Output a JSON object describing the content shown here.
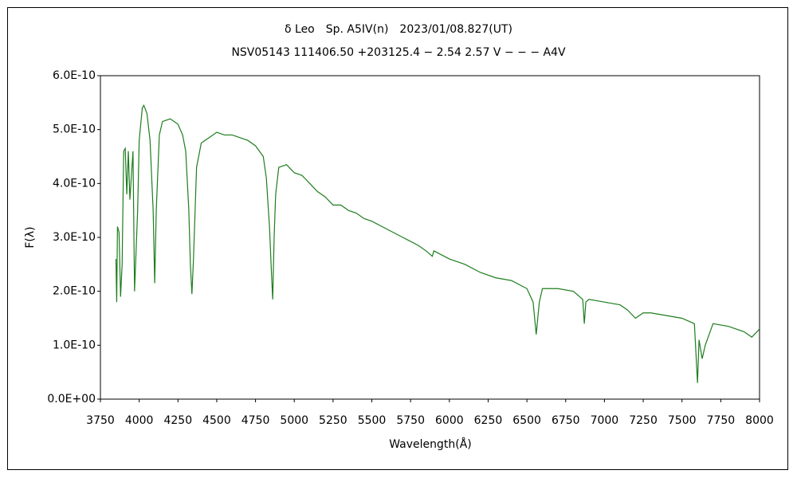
{
  "chart_data": {
    "type": "line",
    "title": "δ Leo　Sp. A5IV(n)　2023/01/08.827(UT)",
    "subtitle": "NSV05143 111406.50 +203125.4 − 2.54 2.57 V − − − A4V",
    "x_label": "Wavelength(Å)",
    "y_label": "F(λ)",
    "color": "#1e7d1e",
    "xlim": [
      3750,
      8000
    ],
    "xticks": [
      3750,
      4000,
      4250,
      4500,
      4750,
      5000,
      5250,
      5500,
      5750,
      6000,
      6250,
      6500,
      6750,
      7000,
      7250,
      7500,
      7750,
      8000
    ],
    "ylim": [
      0,
      6e-10
    ],
    "yticks": [
      {
        "value": 0,
        "label": "0.0E+00"
      },
      {
        "value": 1e-10,
        "label": "1.0E-10"
      },
      {
        "value": 2e-10,
        "label": "2.0E-10"
      },
      {
        "value": 3e-10,
        "label": "3.0E-10"
      },
      {
        "value": 4e-10,
        "label": "4.0E-10"
      },
      {
        "value": 5e-10,
        "label": "5.0E-10"
      },
      {
        "value": 6e-10,
        "label": "6.0E-10"
      }
    ],
    "x": [
      3850,
      3855,
      3860,
      3870,
      3880,
      3890,
      3900,
      3910,
      3920,
      3930,
      3940,
      3960,
      3970,
      3990,
      4000,
      4020,
      4030,
      4050,
      4070,
      4090,
      4100,
      4110,
      4130,
      4150,
      4200,
      4250,
      4280,
      4300,
      4320,
      4330,
      4340,
      4350,
      4370,
      4400,
      4450,
      4500,
      4550,
      4600,
      4650,
      4700,
      4750,
      4800,
      4820,
      4840,
      4855,
      4861,
      4870,
      4880,
      4900,
      4950,
      5000,
      5050,
      5100,
      5150,
      5200,
      5250,
      5300,
      5350,
      5400,
      5450,
      5500,
      5600,
      5700,
      5800,
      5850,
      5890,
      5900,
      6000,
      6100,
      6200,
      6300,
      6400,
      6500,
      6540,
      6560,
      6580,
      6600,
      6700,
      6800,
      6860,
      6870,
      6880,
      6900,
      7000,
      7100,
      7150,
      7200,
      7250,
      7300,
      7400,
      7500,
      7580,
      7600,
      7610,
      7630,
      7650,
      7700,
      7800,
      7900,
      7950,
      8000
    ],
    "values": [
      2.6e-10,
      1.8e-10,
      3.2e-10,
      3.1e-10,
      1.9e-10,
      2.5e-10,
      4.6e-10,
      4.65e-10,
      3.8e-10,
      4.6e-10,
      3.7e-10,
      4.6e-10,
      2e-10,
      3.5e-10,
      4.8e-10,
      5.4e-10,
      5.45e-10,
      5.3e-10,
      4.8e-10,
      3.5e-10,
      2.15e-10,
      3.5e-10,
      4.9e-10,
      5.15e-10,
      5.2e-10,
      5.1e-10,
      4.9e-10,
      4.6e-10,
      3.5e-10,
      2.5e-10,
      1.95e-10,
      2.6e-10,
      4.3e-10,
      4.75e-10,
      4.85e-10,
      4.95e-10,
      4.9e-10,
      4.9e-10,
      4.85e-10,
      4.8e-10,
      4.7e-10,
      4.5e-10,
      4.1e-10,
      3.2e-10,
      2.2e-10,
      1.85e-10,
      3e-10,
      3.8e-10,
      4.3e-10,
      4.35e-10,
      4.2e-10,
      4.15e-10,
      4e-10,
      3.85e-10,
      3.75e-10,
      3.6e-10,
      3.6e-10,
      3.5e-10,
      3.45e-10,
      3.35e-10,
      3.3e-10,
      3.15e-10,
      3e-10,
      2.85e-10,
      2.75e-10,
      2.65e-10,
      2.75e-10,
      2.6e-10,
      2.5e-10,
      2.35e-10,
      2.25e-10,
      2.2e-10,
      2.05e-10,
      1.8e-10,
      1.2e-10,
      1.8e-10,
      2.05e-10,
      2.05e-10,
      2e-10,
      1.85e-10,
      1.4e-10,
      1.8e-10,
      1.85e-10,
      1.8e-10,
      1.75e-10,
      1.65e-10,
      1.5e-10,
      1.6e-10,
      1.6e-10,
      1.55e-10,
      1.5e-10,
      1.4e-10,
      3e-11,
      1.1e-10,
      7.5e-11,
      1e-10,
      1.4e-10,
      1.35e-10,
      1.25e-10,
      1.15e-10,
      1.3e-10
    ]
  }
}
